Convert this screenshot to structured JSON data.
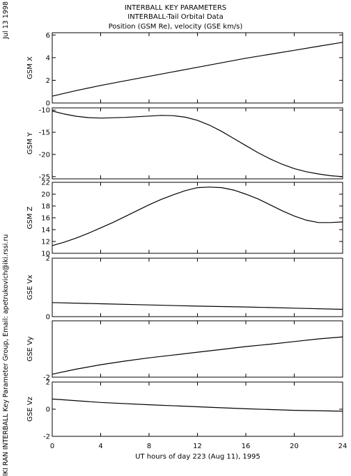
{
  "header": {
    "line1": "INTERBALL KEY PARAMETERS",
    "line2": "INTERBALL-Tail Orbital Data",
    "line3": "Position (GSM Re), velocity (GSE km/s)"
  },
  "side_date": "Jul 13 1998",
  "side_credit": "IKI RAN INTERBALL Key Parameter Group, Email: apetrukovich@iki.rssi.ru",
  "colors": {
    "line": "#000000",
    "background": "#ffffff",
    "frame": "#000000"
  },
  "chart_data": [
    {
      "type": "line",
      "ylabel": "GSM X",
      "ylim": [
        0,
        6.2
      ],
      "yticks": [
        0,
        2,
        4,
        6
      ],
      "xlim": [
        0,
        24
      ],
      "x": [
        0,
        2,
        4,
        6,
        8,
        10,
        12,
        14,
        16,
        18,
        20,
        22,
        24
      ],
      "series": [
        {
          "values": [
            0.6,
            1.1,
            1.55,
            1.95,
            2.35,
            2.75,
            3.15,
            3.55,
            3.95,
            4.3,
            4.65,
            5.0,
            5.35
          ]
        }
      ]
    },
    {
      "type": "line",
      "ylabel": "GSM Y",
      "ylim": [
        -25.5,
        -9.5
      ],
      "yticks": [
        -10,
        -15,
        -20,
        -25
      ],
      "xlim": [
        0,
        24
      ],
      "x": [
        0,
        1,
        2,
        3,
        4,
        6,
        8,
        9,
        10,
        11,
        12,
        13,
        14,
        15,
        16,
        17,
        18,
        19,
        20,
        21,
        22,
        23,
        24
      ],
      "series": [
        {
          "values": [
            -10.2,
            -10.9,
            -11.4,
            -11.7,
            -11.8,
            -11.65,
            -11.35,
            -11.2,
            -11.25,
            -11.6,
            -12.3,
            -13.4,
            -14.8,
            -16.4,
            -18.0,
            -19.6,
            -21.0,
            -22.2,
            -23.2,
            -23.9,
            -24.4,
            -24.8,
            -25.0
          ]
        }
      ]
    },
    {
      "type": "line",
      "ylabel": "GSM Z",
      "ylim": [
        10,
        22
      ],
      "yticks": [
        10,
        12,
        14,
        16,
        18,
        20,
        22
      ],
      "xlim": [
        0,
        24
      ],
      "x": [
        0,
        1,
        2,
        3,
        4,
        5,
        6,
        7,
        8,
        9,
        10,
        11,
        12,
        13,
        14,
        15,
        16,
        17,
        18,
        19,
        20,
        21,
        22,
        23,
        24
      ],
      "series": [
        {
          "values": [
            11.3,
            11.9,
            12.6,
            13.4,
            14.3,
            15.2,
            16.2,
            17.2,
            18.2,
            19.1,
            19.9,
            20.6,
            21.1,
            21.2,
            21.1,
            20.7,
            20.0,
            19.2,
            18.2,
            17.2,
            16.3,
            15.6,
            15.2,
            15.2,
            15.3
          ]
        }
      ]
    },
    {
      "type": "line",
      "ylabel": "GSE Vx",
      "ylim": [
        0,
        2
      ],
      "yticks": [
        0,
        2
      ],
      "xlim": [
        0,
        24
      ],
      "x": [
        0,
        4,
        8,
        12,
        16,
        20,
        24
      ],
      "series": [
        {
          "values": [
            0.48,
            0.44,
            0.4,
            0.36,
            0.33,
            0.29,
            0.25
          ]
        }
      ]
    },
    {
      "type": "line",
      "ylabel": "GSE Vy",
      "ylim": [
        -2,
        0.8
      ],
      "yticks": [
        -2
      ],
      "xlim": [
        0,
        24
      ],
      "x": [
        0,
        2,
        4,
        6,
        8,
        10,
        12,
        14,
        16,
        18,
        20,
        22,
        24
      ],
      "series": [
        {
          "values": [
            -1.85,
            -1.6,
            -1.38,
            -1.2,
            -1.04,
            -0.9,
            -0.76,
            -0.62,
            -0.48,
            -0.36,
            -0.23,
            -0.1,
            0.0
          ]
        }
      ]
    },
    {
      "type": "line",
      "ylabel": "GSE Vz",
      "ylim": [
        -2,
        2
      ],
      "yticks": [
        2,
        0,
        -2
      ],
      "xlim": [
        0,
        24
      ],
      "x": [
        0,
        4,
        8,
        12,
        16,
        20,
        24
      ],
      "series": [
        {
          "values": [
            0.75,
            0.5,
            0.33,
            0.18,
            0.03,
            -0.08,
            -0.15
          ]
        }
      ]
    }
  ],
  "x_axis": {
    "xlabel": "UT hours of day 223 (Aug 11), 1995",
    "ticks": [
      "0",
      "4",
      "8",
      "12",
      "16",
      "20",
      "24"
    ]
  }
}
